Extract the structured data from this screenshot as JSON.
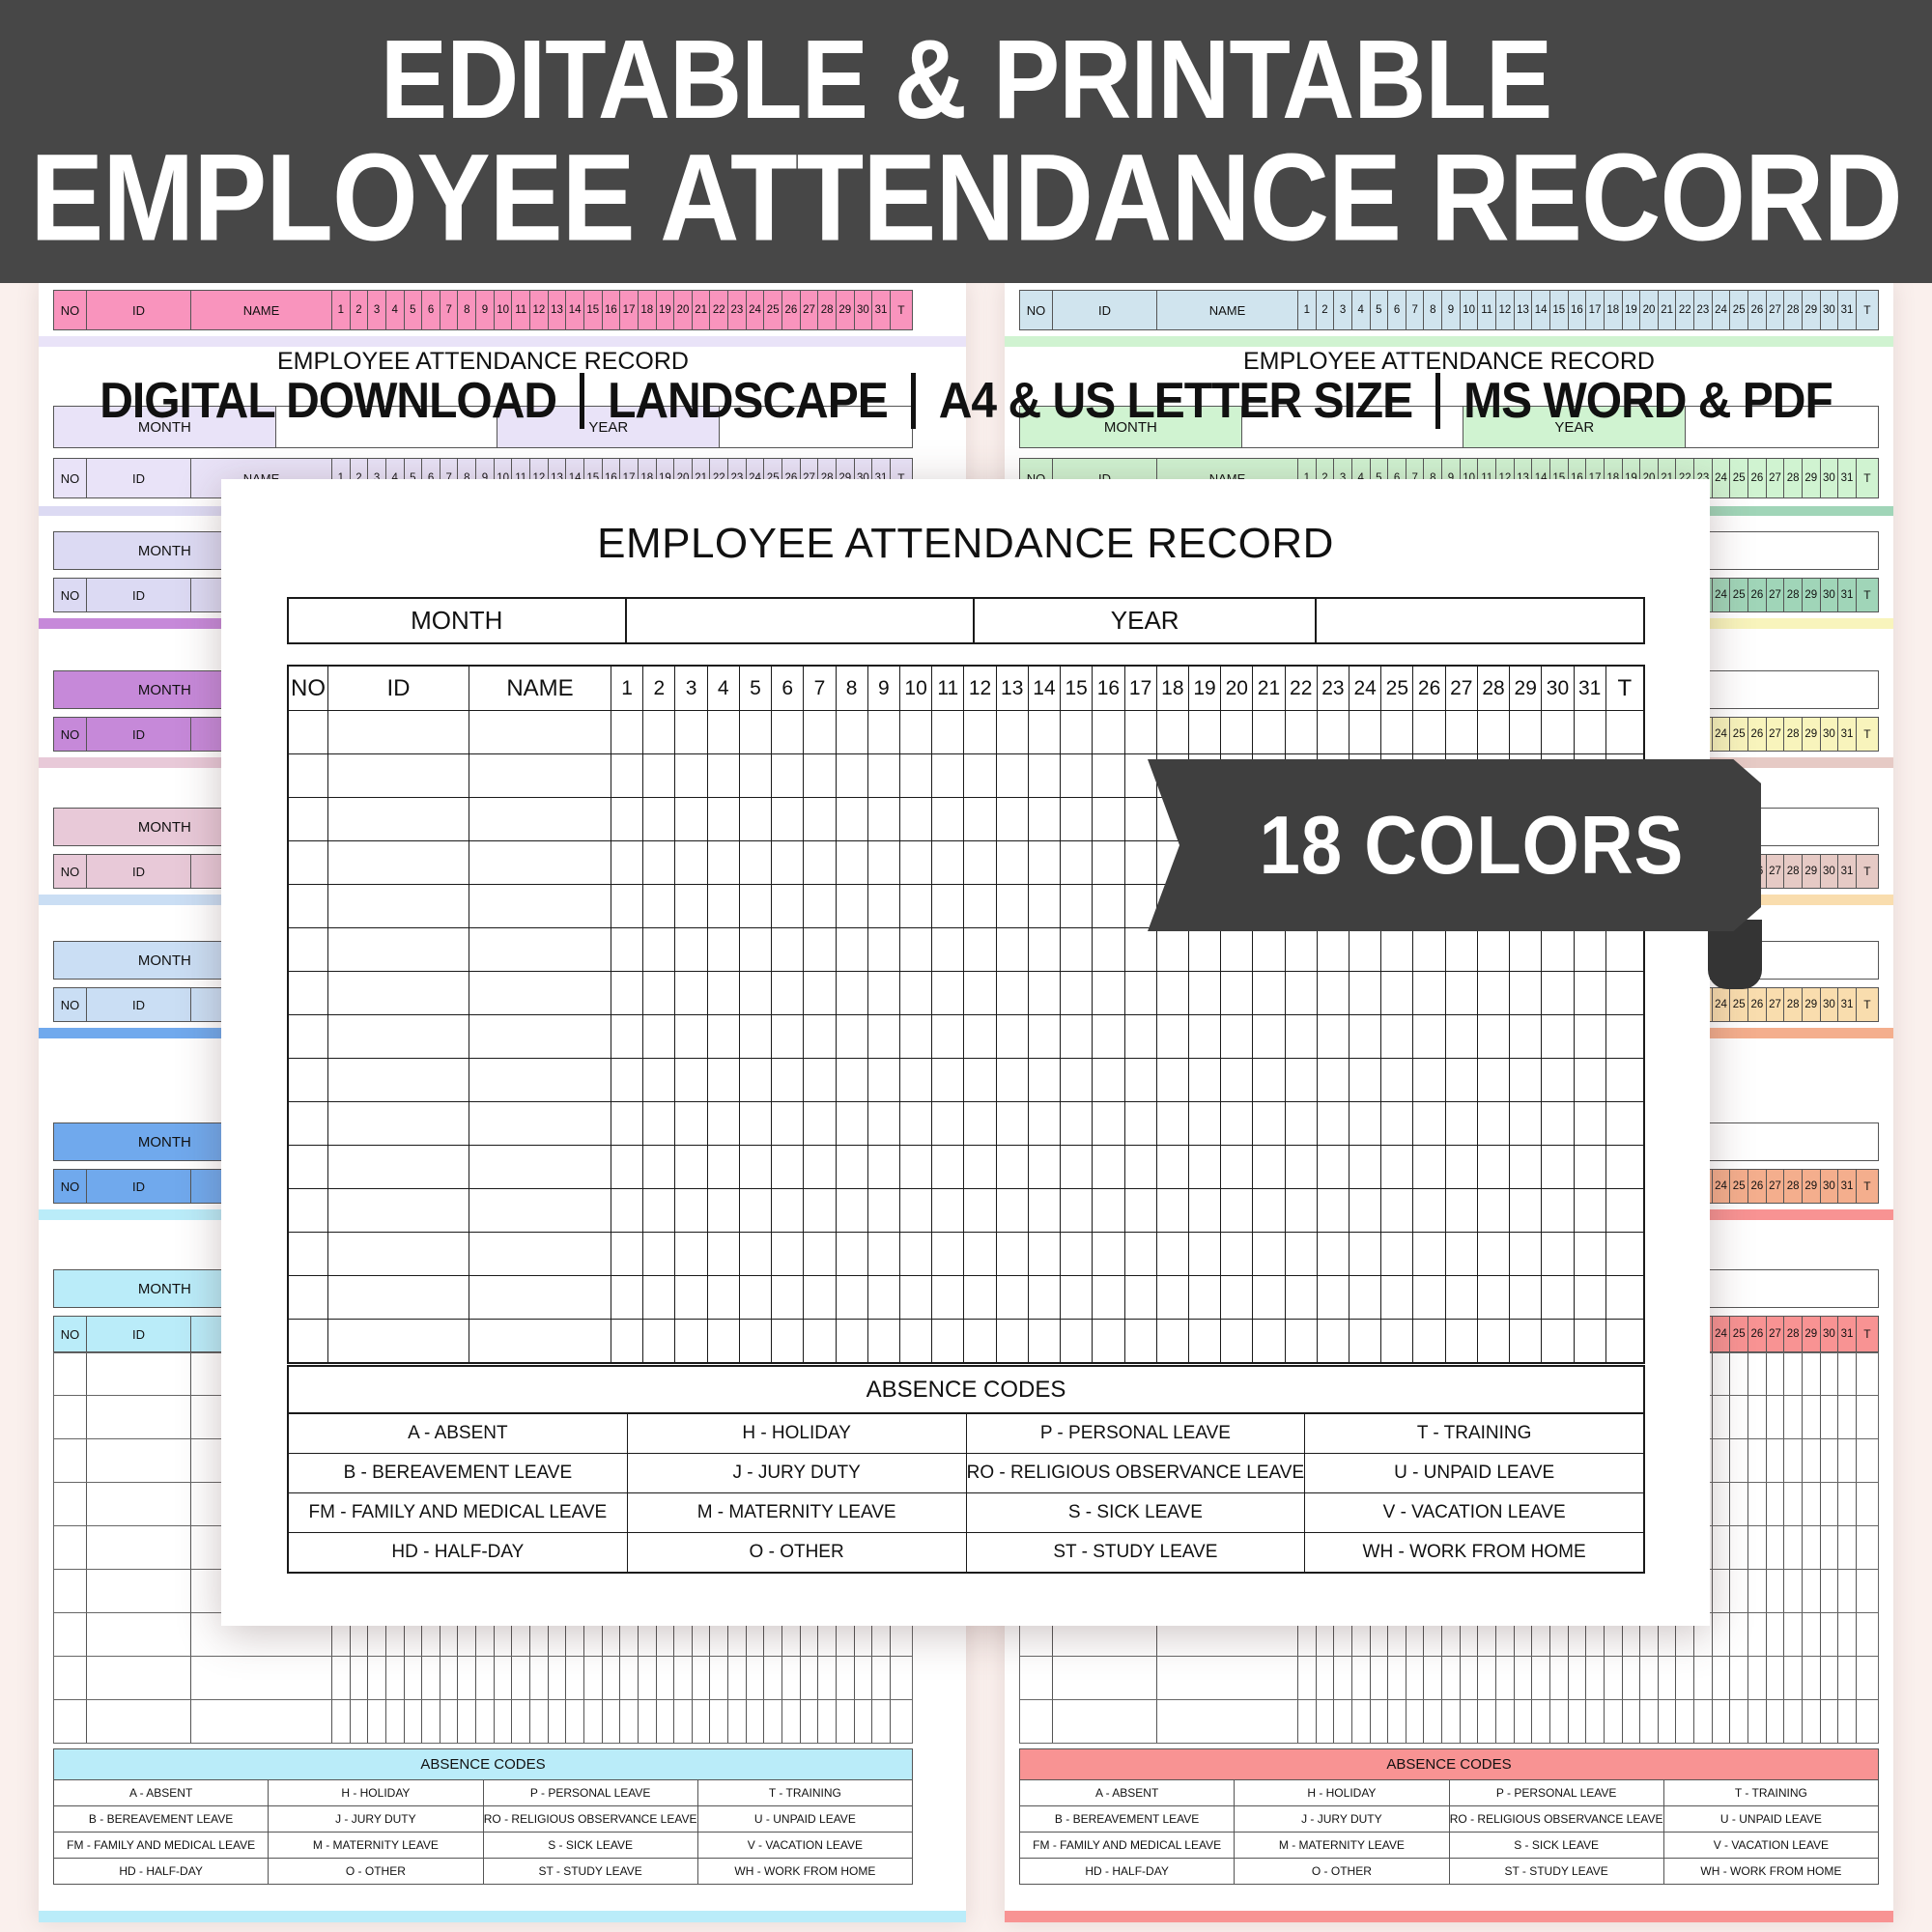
{
  "header": {
    "line1": "EDITABLE & PRINTABLE",
    "line2": "EMPLOYEE ATTENDANCE RECORD"
  },
  "subheader": {
    "segments": [
      "DIGITAL DOWNLOAD",
      "LANDSCAPE",
      "A4 & US LETTER SIZE",
      "MS WORD & PDF"
    ]
  },
  "badge": {
    "label": "18 COLORS"
  },
  "template": {
    "title": "EMPLOYEE ATTENDANCE RECORD",
    "month_label": "MONTH",
    "year_label": "YEAR",
    "columns": {
      "no": "NO",
      "id": "ID",
      "name": "NAME",
      "total": "T"
    },
    "days": [
      "1",
      "2",
      "3",
      "4",
      "5",
      "6",
      "7",
      "8",
      "9",
      "10",
      "11",
      "12",
      "13",
      "14",
      "15",
      "16",
      "17",
      "18",
      "19",
      "20",
      "21",
      "22",
      "23",
      "24",
      "25",
      "26",
      "27",
      "28",
      "29",
      "30",
      "31"
    ],
    "body_rows": 15
  },
  "absence_codes": {
    "title": "ABSENCE CODES",
    "rows": [
      [
        "A - ABSENT",
        "H - HOLIDAY",
        "P - PERSONAL LEAVE",
        "T - TRAINING"
      ],
      [
        "B - BEREAVEMENT LEAVE",
        "J - JURY DUTY",
        "RO - RELIGIOUS OBSERVANCE LEAVE",
        "U - UNPAID LEAVE"
      ],
      [
        "FM - FAMILY AND MEDICAL LEAVE",
        "M - MATERNITY LEAVE",
        "S - SICK LEAVE",
        "V - VACATION LEAVE"
      ],
      [
        "HD - HALF-DAY",
        "O - OTHER",
        "ST - STUDY LEAVE",
        "WH - WORK FROM HOME"
      ]
    ]
  },
  "palette": {
    "banner_bg": "#474747",
    "badge_bg": "#3f3f3f",
    "page_bg": "#faf0ed",
    "card_bg": "#ffffff",
    "left_colors": [
      "#f994bd",
      "#e9e3f8",
      "#dcdaf3",
      "#c689d9",
      "#e8c9d8",
      "#cadef4",
      "#70a9ed",
      "#baecf9"
    ],
    "right_colors": [
      "#d0e4ee",
      "#d0f3d1",
      "#a0d5b8",
      "#f8f4bc",
      "#e6cac5",
      "#f9ddae",
      "#f4ae8d",
      "#f89393"
    ]
  }
}
